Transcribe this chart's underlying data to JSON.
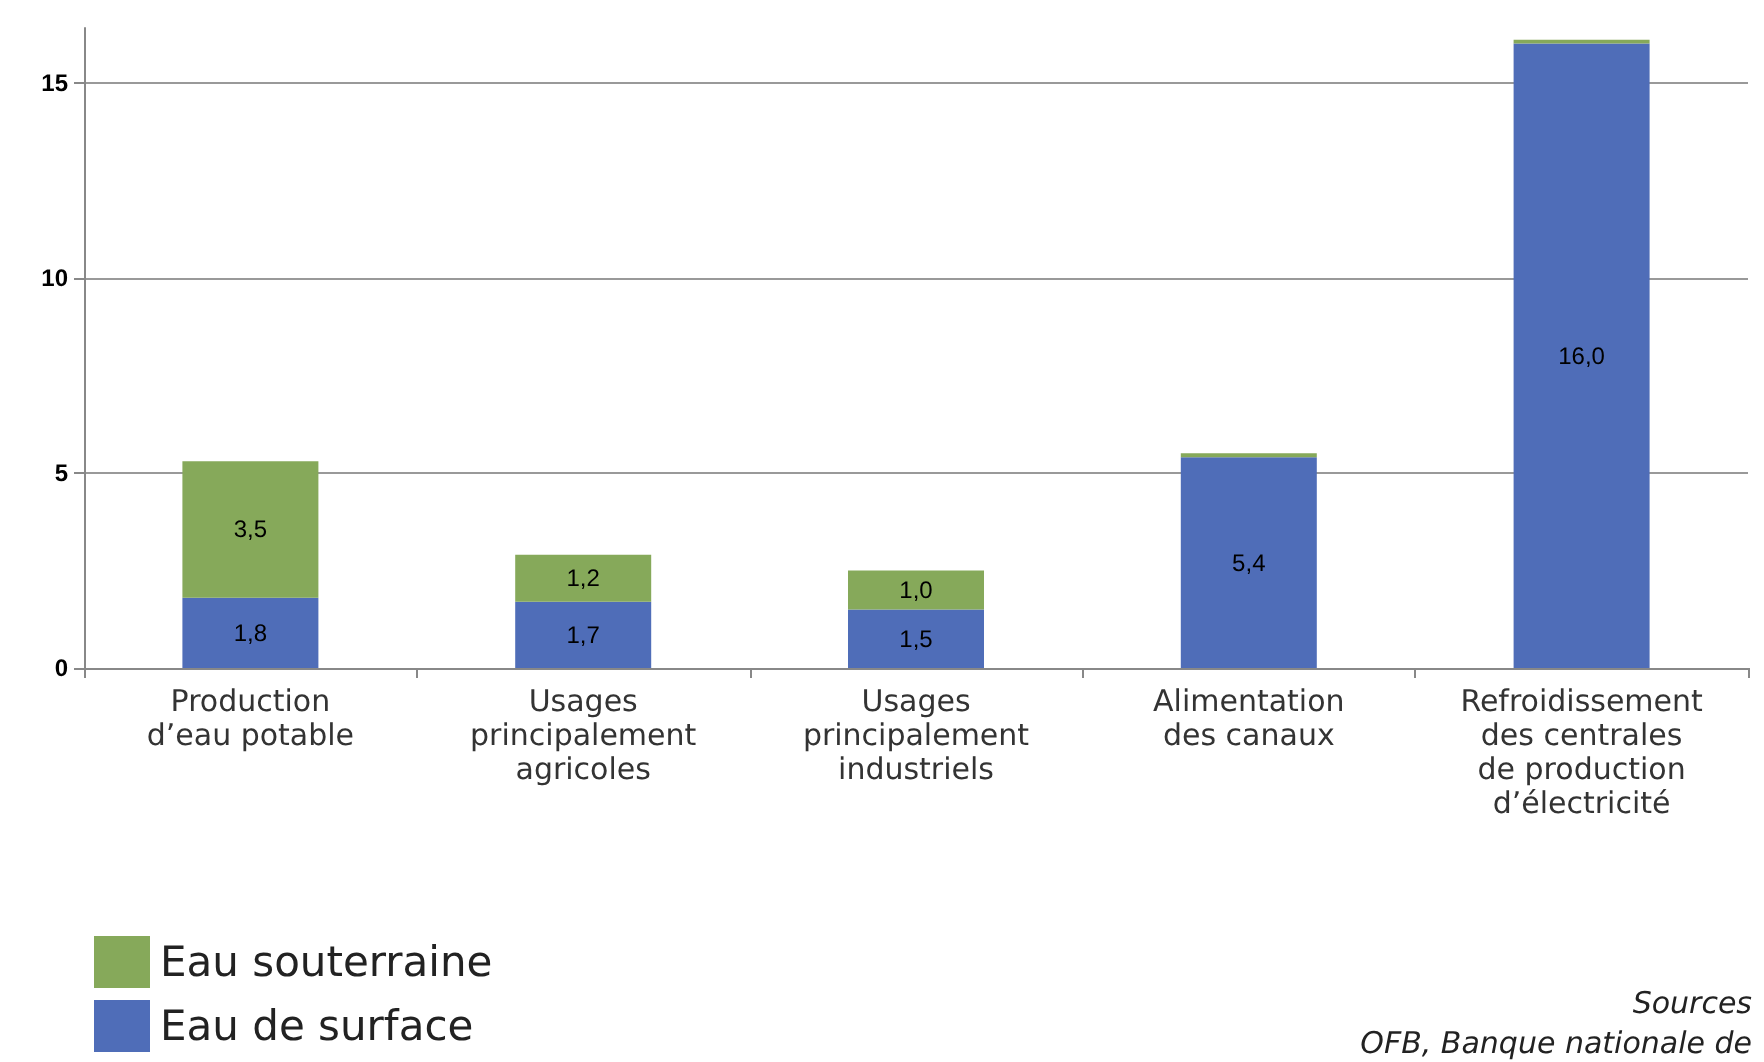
{
  "chart_data": {
    "type": "bar",
    "stacked": true,
    "categories": [
      "Production\nd’eau potable",
      "Usages\nprincipalement\nagricoles",
      "Usages\nprincipalement\nindustriels",
      "Alimentation\ndes canaux",
      "Refroidissement\ndes centrales\nde production\nd’électricité"
    ],
    "series": [
      {
        "name": "Eau de surface",
        "color": "#4f6db8",
        "values": [
          1.8,
          1.7,
          1.5,
          5.4,
          16.0
        ],
        "value_labels": [
          "1,8",
          "1,7",
          "1,5",
          "5,4",
          "16,0"
        ]
      },
      {
        "name": "Eau souterraine",
        "color": "#86a95a",
        "values": [
          3.5,
          1.2,
          1.0,
          0.1,
          0.1
        ],
        "value_labels": [
          "3,5",
          "1,2",
          "1,0",
          null,
          null
        ]
      }
    ],
    "ylim": [
      0,
      16.4
    ],
    "yticks": [
      0,
      5,
      10,
      15
    ],
    "grid": "y",
    "legend": "bottom left",
    "annotations": [
      "Sources",
      "OFB, Banque nationale de"
    ]
  }
}
